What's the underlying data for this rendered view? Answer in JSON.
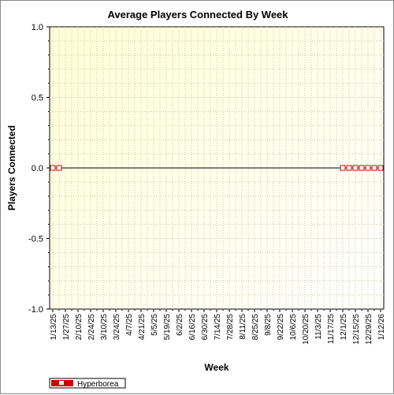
{
  "chart_data": {
    "type": "line",
    "title": "Average Players Connected By Week",
    "xlabel": "Week",
    "ylabel": "Players Connected",
    "ylim": [
      -1.0,
      1.0
    ],
    "ytick_labels": [
      "1.0",
      "0.5",
      "0.0",
      "-0.5",
      "-1.0"
    ],
    "ytick_values": [
      1.0,
      0.5,
      0.0,
      -0.5,
      -1.0
    ],
    "categories": [
      "1/13/25",
      "1/27/25",
      "2/10/25",
      "2/24/25",
      "3/10/25",
      "3/24/25",
      "4/7/25",
      "4/21/25",
      "5/5/25",
      "5/19/25",
      "6/2/25",
      "6/16/25",
      "6/30/25",
      "7/14/25",
      "7/28/25",
      "8/11/25",
      "8/25/25",
      "9/8/25",
      "9/22/25",
      "10/6/25",
      "10/20/25",
      "11/3/25",
      "11/17/25",
      "12/1/25",
      "12/15/25",
      "12/29/25",
      "1/12/26"
    ],
    "total_weeks": 53,
    "series": [
      {
        "name": "Hyperborea",
        "color": "#cc0000",
        "points": [
          {
            "week_index": 0,
            "value": 0
          },
          {
            "week_index": 1,
            "value": 0
          },
          {
            "week_index": 46,
            "value": 0
          },
          {
            "week_index": 47,
            "value": 0
          },
          {
            "week_index": 48,
            "value": 0
          },
          {
            "week_index": 49,
            "value": 0
          },
          {
            "week_index": 50,
            "value": 0
          },
          {
            "week_index": 51,
            "value": 0
          },
          {
            "week_index": 52,
            "value": 0
          }
        ]
      }
    ],
    "grid": true,
    "legend_position": "bottom-left"
  }
}
